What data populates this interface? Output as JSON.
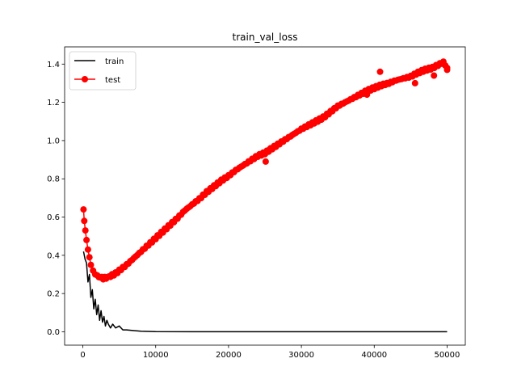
{
  "chart_data": {
    "type": "line",
    "title": "train_val_loss",
    "xlabel": "",
    "ylabel": "",
    "xlim": [
      -2500,
      52500
    ],
    "ylim": [
      -0.07,
      1.49
    ],
    "xticks": [
      0,
      10000,
      20000,
      30000,
      40000,
      50000
    ],
    "xtick_labels": [
      "0",
      "10000",
      "20000",
      "30000",
      "40000",
      "50000"
    ],
    "yticks": [
      0.0,
      0.2,
      0.4,
      0.6,
      0.8,
      1.0,
      1.2,
      1.4
    ],
    "ytick_labels": [
      "0.0",
      "0.2",
      "0.4",
      "0.6",
      "0.8",
      "1.0",
      "1.2",
      "1.4"
    ],
    "grid": false,
    "legend_position": "upper-left",
    "series": [
      {
        "name": "train",
        "color": "#000000",
        "marker": "none",
        "x": [
          100,
          300,
          500,
          700,
          900,
          1100,
          1300,
          1500,
          1700,
          1900,
          2100,
          2300,
          2500,
          2700,
          2900,
          3100,
          3300,
          3500,
          3800,
          4100,
          4500,
          5000,
          5500,
          6000,
          7000,
          8000,
          10000,
          15000,
          20000,
          30000,
          40000,
          50000
        ],
        "y": [
          0.42,
          0.38,
          0.36,
          0.26,
          0.3,
          0.18,
          0.22,
          0.12,
          0.17,
          0.09,
          0.14,
          0.06,
          0.11,
          0.05,
          0.08,
          0.03,
          0.06,
          0.04,
          0.02,
          0.04,
          0.02,
          0.03,
          0.01,
          0.01,
          0.006,
          0.003,
          0.001,
          0.0,
          0.0,
          0.0,
          0.0,
          0.0
        ]
      },
      {
        "name": "test",
        "color": "#ff0000",
        "marker": "circle",
        "x": [
          100,
          200,
          350,
          500,
          700,
          900,
          1100,
          1400,
          1700,
          2000,
          2400,
          2800,
          3200,
          3600,
          4000,
          4500,
          5000,
          5500,
          6000,
          7000,
          8000,
          9000,
          10000,
          11000,
          12000,
          13000,
          14000,
          15000,
          16000,
          17000,
          18000,
          19000,
          20000,
          21000,
          22000,
          23000,
          24000,
          25000,
          26000,
          27000,
          28000,
          29000,
          30000,
          31000,
          32000,
          33000,
          34000,
          35000,
          36000,
          37000,
          38000,
          39000,
          40000,
          41000,
          42000,
          43000,
          44000,
          45000,
          46000,
          47000,
          48000,
          49000,
          49500,
          50000
        ],
        "y": [
          0.64,
          0.58,
          0.53,
          0.48,
          0.43,
          0.39,
          0.35,
          0.32,
          0.3,
          0.29,
          0.285,
          0.28,
          0.282,
          0.288,
          0.295,
          0.305,
          0.32,
          0.335,
          0.35,
          0.385,
          0.42,
          0.455,
          0.49,
          0.525,
          0.56,
          0.595,
          0.635,
          0.665,
          0.695,
          0.73,
          0.76,
          0.79,
          0.815,
          0.845,
          0.87,
          0.895,
          0.92,
          0.935,
          0.96,
          0.985,
          1.01,
          1.035,
          1.06,
          1.08,
          1.1,
          1.12,
          1.15,
          1.18,
          1.2,
          1.22,
          1.24,
          1.26,
          1.275,
          1.29,
          1.3,
          1.315,
          1.325,
          1.335,
          1.355,
          1.37,
          1.38,
          1.4,
          1.41,
          1.38
        ],
        "outliers_x": [
          25100,
          40800,
          39000,
          45600,
          48200,
          50000
        ],
        "outliers_y": [
          0.89,
          1.36,
          1.24,
          1.3,
          1.34,
          1.37
        ]
      }
    ]
  }
}
